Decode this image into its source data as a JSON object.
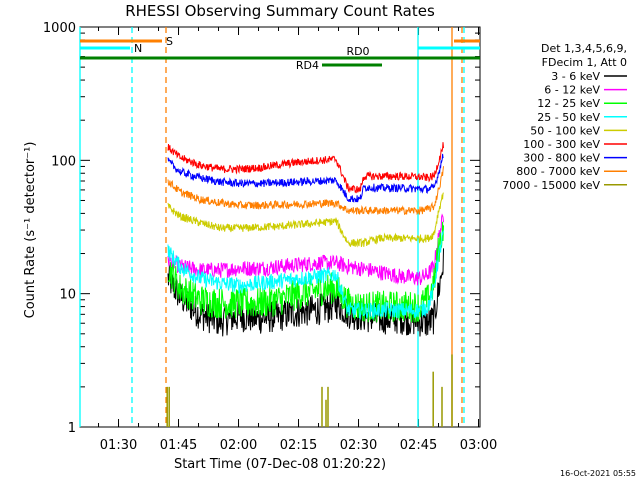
{
  "title": "RHESSI Observing Summary Count Rates",
  "ylabel": "Count Rate (s⁻¹ detector⁻¹)",
  "xlabel": "Start Time (07-Dec-08 01:20:22)",
  "footer": "16-Oct-2021 05:55",
  "legend_header": [
    "Det 1,3,4,5,6,9,",
    "FDecim 1, Att 0"
  ],
  "chart_data": {
    "type": "line",
    "title": "RHESSI Observing Summary Count Rates",
    "xlabel": "Start Time (07-Dec-08 01:20:22)",
    "ylabel": "Count Rate (s⁻¹ detector⁻¹)",
    "yscale": "log",
    "ylim": [
      1,
      1000
    ],
    "xlim_minutes": [
      0,
      100
    ],
    "y_ticks": [
      {
        "v": 1,
        "label": "1"
      },
      {
        "v": 10,
        "label": "10"
      },
      {
        "v": 100,
        "label": "100"
      },
      {
        "v": 1000,
        "label": "1000"
      }
    ],
    "x_ticks": [
      {
        "t": 9.63,
        "label": "01:30"
      },
      {
        "t": 24.63,
        "label": "01:45"
      },
      {
        "t": 39.63,
        "label": "02:00"
      },
      {
        "t": 54.63,
        "label": "02:15"
      },
      {
        "t": 69.63,
        "label": "02:30"
      },
      {
        "t": 84.63,
        "label": "02:45"
      },
      {
        "t": 99.63,
        "label": "03:00"
      }
    ],
    "legend": "top-right",
    "series": [
      {
        "name": "3 - 6 keV",
        "color": "#000000",
        "t": [
          22,
          25,
          30,
          35,
          40,
          45,
          50,
          55,
          62,
          64,
          67,
          70,
          75,
          80,
          85,
          87,
          88.5,
          89.5,
          91
        ],
        "v": [
          13,
          9.5,
          7,
          6.2,
          6.8,
          6.5,
          6.8,
          7.3,
          7.8,
          8.5,
          7.2,
          6.8,
          6.5,
          6.5,
          6.2,
          6,
          6.5,
          10,
          18
        ]
      },
      {
        "name": "6 - 12 keV",
        "color": "#ff00ff",
        "t": [
          22,
          25,
          30,
          35,
          40,
          45,
          50,
          55,
          60,
          64,
          67,
          70,
          75,
          80,
          85,
          87,
          88.5,
          89.5,
          91
        ],
        "v": [
          18,
          16,
          15,
          15,
          15.5,
          15.5,
          16,
          16.5,
          17,
          17,
          16,
          15.5,
          14.5,
          13.5,
          13,
          14,
          16,
          25,
          40
        ]
      },
      {
        "name": "12 - 25 keV",
        "color": "#00ff00",
        "t": [
          22,
          25,
          30,
          35,
          40,
          45,
          50,
          55,
          62,
          64,
          67,
          70,
          75,
          80,
          85,
          87,
          88.5,
          89.5,
          91
        ],
        "v": [
          16,
          11,
          9,
          8.5,
          8.5,
          8.5,
          9,
          10,
          11,
          11,
          8.5,
          8,
          8,
          8,
          8,
          9,
          12,
          20,
          35
        ]
      },
      {
        "name": "25 - 50 keV",
        "color": "#00ffff",
        "t": [
          22,
          25,
          30,
          35,
          40,
          45,
          50,
          55,
          60,
          64,
          67,
          70,
          75,
          80,
          85,
          87,
          88.5,
          89.5,
          91
        ],
        "v": [
          21,
          16,
          13,
          12,
          11.5,
          12,
          12.5,
          13,
          13.5,
          14,
          7.5,
          7.5,
          7.5,
          7.5,
          7.5,
          8,
          11,
          18,
          30
        ]
      },
      {
        "name": "50 - 100 keV",
        "color": "#cccc00",
        "t": [
          22,
          25,
          30,
          35,
          40,
          45,
          50,
          55,
          60,
          64,
          67,
          70,
          71,
          75,
          80,
          85,
          87,
          88.5,
          89.5,
          91
        ],
        "v": [
          45,
          38,
          34,
          31,
          31,
          31.5,
          32,
          33,
          34,
          35,
          24,
          24,
          24,
          26,
          26,
          26,
          26,
          28,
          40,
          60
        ]
      },
      {
        "name": "100 - 300 keV",
        "color": "#ff0000",
        "t": [
          22,
          25,
          30,
          35,
          40,
          45,
          50,
          55,
          60,
          64,
          67,
          70,
          71,
          75,
          80,
          85,
          87,
          88.5,
          89.5,
          91
        ],
        "v": [
          125,
          105,
          92,
          86,
          86,
          88,
          93,
          97,
          100,
          102,
          62,
          60,
          76,
          76,
          76,
          75,
          74,
          76,
          95,
          135
        ]
      },
      {
        "name": "300 - 800 keV",
        "color": "#0000ff",
        "t": [
          22,
          25,
          30,
          35,
          40,
          45,
          50,
          55,
          60,
          64,
          67,
          70,
          71,
          75,
          80,
          85,
          87,
          88.5,
          89.5,
          91
        ],
        "v": [
          98,
          82,
          74,
          69,
          67,
          67,
          68,
          69,
          70,
          71,
          52,
          51,
          63,
          62,
          62,
          61,
          61,
          62,
          78,
          115
        ]
      },
      {
        "name": "800 - 7000 keV",
        "color": "#ff7f00",
        "t": [
          22,
          25,
          30,
          35,
          40,
          45,
          50,
          55,
          60,
          64,
          67,
          70,
          75,
          80,
          85,
          87,
          88.5,
          89.5,
          91
        ],
        "v": [
          70,
          58,
          51,
          48,
          46,
          46,
          46.5,
          47,
          47.5,
          48,
          42,
          42,
          42,
          42,
          42,
          43,
          45,
          58,
          88
        ]
      },
      {
        "name": "7000 - 15000 keV",
        "color": "#999900",
        "t": [
          21.5,
          22,
          23
        ],
        "v": [
          1.5,
          2,
          1.5
        ]
      }
    ],
    "overlays": {
      "S": {
        "label": "S",
        "color": "#ff8000",
        "t_start": 0,
        "t_end": 20.5,
        "t_start2": 93.5,
        "t_end2": 100
      },
      "N": {
        "label": "N",
        "color": "#00ffff",
        "t_start": 0,
        "t_end": 12.5,
        "t_start2": 84.5,
        "t_end2": 100
      },
      "RD0": {
        "label": "RD0",
        "color": "#008000",
        "t_start": 0,
        "t_end": 100
      },
      "RD4": {
        "label": "RD4",
        "color": "#008000",
        "t_start": 60.5,
        "t_end": 75.5
      }
    },
    "vlines": [
      {
        "t": 0,
        "color": "#00ffff",
        "style": "solid"
      },
      {
        "t": 13,
        "color": "#00ffff",
        "style": "dashed"
      },
      {
        "t": 21.5,
        "color": "#ff8000",
        "style": "dashed"
      },
      {
        "t": 84.5,
        "color": "#00ffff",
        "style": "solid"
      },
      {
        "t": 93,
        "color": "#ff8000",
        "style": "solid"
      },
      {
        "t": 96,
        "color": "#00ffff",
        "style": "dashed"
      },
      {
        "t": 95.5,
        "color": "#ff8000",
        "style": "dashed"
      }
    ]
  }
}
